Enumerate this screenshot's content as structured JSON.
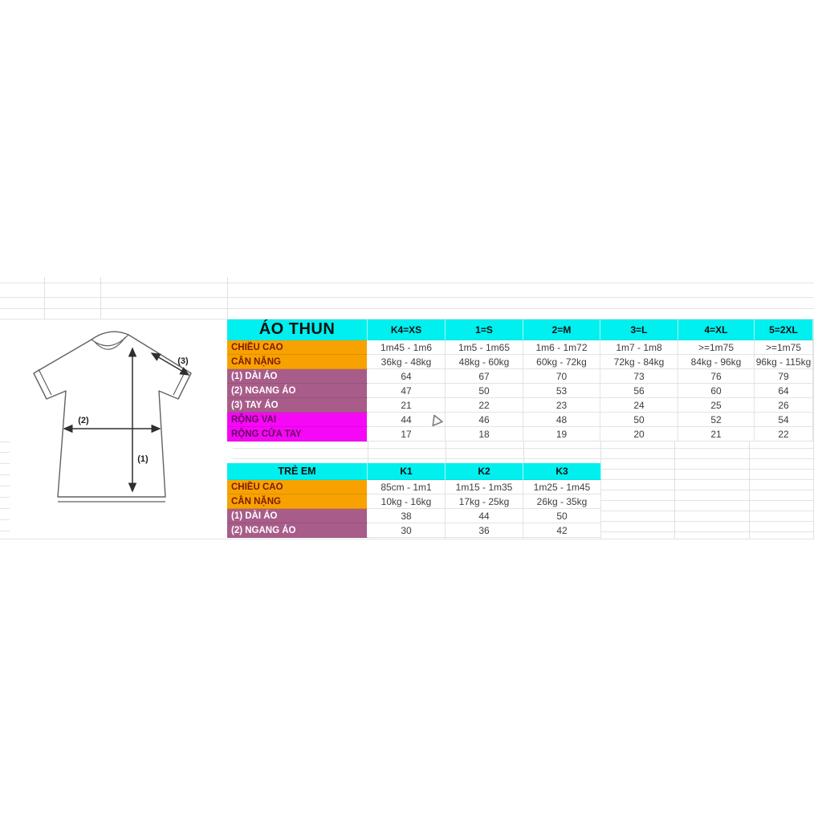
{
  "colors": {
    "header_bg": "#00efef",
    "orange_bg": "#f8a201",
    "orange_text": "#7b1a04",
    "purple_bg": "#a85c8a",
    "purple_text": "#ffffff",
    "magenta_bg": "#f607f6",
    "magenta_text": "#64095f",
    "value_text": "#3d3d3d",
    "header_text": "#101010"
  },
  "tables": {
    "adult": {
      "title": "ÁO THUN",
      "columns": [
        "K4=XS",
        "1=S",
        "2=M",
        "3=L",
        "4=XL",
        "5=2XL"
      ],
      "rows": [
        {
          "label": "CHIỀU CAO",
          "type": "orange",
          "values": [
            "1m45 - 1m6",
            "1m5 - 1m65",
            "1m6 - 1m72",
            "1m7 - 1m8",
            ">=1m75",
            ">=1m75"
          ]
        },
        {
          "label": "CÂN NẶNG",
          "type": "orange",
          "values": [
            "36kg - 48kg",
            "48kg - 60kg",
            "60kg - 72kg",
            "72kg - 84kg",
            "84kg - 96kg",
            "96kg - 115kg"
          ]
        },
        {
          "label": "(1) DÀI ÁO",
          "type": "purple",
          "values": [
            "64",
            "67",
            "70",
            "73",
            "76",
            "79"
          ]
        },
        {
          "label": "(2) NGANG ÁO",
          "type": "purple",
          "values": [
            "47",
            "50",
            "53",
            "56",
            "60",
            "64"
          ]
        },
        {
          "label": "(3) TAY ÁO",
          "type": "purple",
          "values": [
            "21",
            "22",
            "23",
            "24",
            "25",
            "26"
          ]
        },
        {
          "label": "RỘNG VAI",
          "type": "magenta",
          "values": [
            "44",
            "46",
            "48",
            "50",
            "52",
            "54"
          ]
        },
        {
          "label": "RỘNG CỬA TAY",
          "type": "magenta",
          "values": [
            "17",
            "18",
            "19",
            "20",
            "21",
            "22"
          ]
        }
      ]
    },
    "kids": {
      "title": "TRẺ EM",
      "columns": [
        "K1",
        "K2",
        "K3"
      ],
      "rows": [
        {
          "label": "CHIỀU CAO",
          "type": "orange",
          "values": [
            "85cm - 1m1",
            "1m15 - 1m35",
            "1m25 - 1m45"
          ]
        },
        {
          "label": "CÂN NẶNG",
          "type": "orange",
          "values": [
            "10kg - 16kg",
            "17kg - 25kg",
            "26kg - 35kg"
          ]
        },
        {
          "label": "(1) DÀI ÁO",
          "type": "purple",
          "values": [
            "38",
            "44",
            "50"
          ]
        },
        {
          "label": "(2) NGANG ÁO",
          "type": "purple",
          "values": [
            "30",
            "36",
            "42"
          ]
        }
      ]
    }
  },
  "diagram": {
    "labels": [
      "(1)",
      "(2)",
      "(3)"
    ]
  },
  "icons": {
    "cursor": "hollow-triangle-pointer-icon"
  }
}
